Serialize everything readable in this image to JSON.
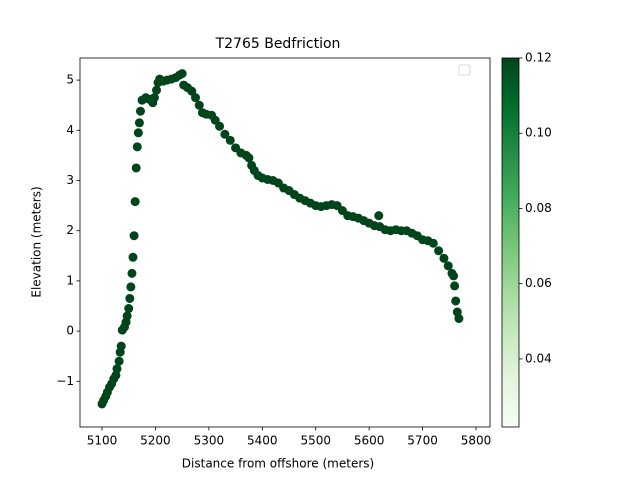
{
  "chart_data": {
    "type": "scatter",
    "title": "T2765 Bedfriction",
    "xlabel": "Distance from offshore (meters)",
    "ylabel": "Elevation (meters)",
    "xlim": [
      5058.8,
      5826.2
    ],
    "ylim": [
      -1.91,
      5.44
    ],
    "xticks": [
      5100,
      5200,
      5300,
      5400,
      5500,
      5600,
      5700,
      5800
    ],
    "yticks": [
      {
        "value": -1,
        "label": "−1"
      },
      0,
      1,
      2,
      3,
      4,
      5
    ],
    "color": "#00441b",
    "legend": "upper right",
    "colorbar": {
      "clim": [
        0.0219,
        0.12
      ],
      "cticks": [
        0.04,
        0.06,
        0.08,
        0.1,
        0.12
      ],
      "ctick_labels": [
        "0.04",
        "0.06",
        "0.08",
        "0.10",
        "0.12"
      ],
      "colormap": [
        "#f7fcf5",
        "#e5f5e0",
        "#c7e9c0",
        "#a1d99b",
        "#74c476",
        "#41ab5d",
        "#238b45",
        "#006d2c",
        "#00441b"
      ]
    },
    "x": [
      5100,
      5103,
      5107,
      5110,
      5114,
      5118,
      5122,
      5126,
      5128,
      5132,
      5134,
      5136,
      5138,
      5142,
      5145,
      5147,
      5150,
      5152,
      5154,
      5156,
      5158,
      5160,
      5162,
      5164,
      5166,
      5168,
      5170,
      5172,
      5175,
      5182,
      5188,
      5195,
      5198,
      5202,
      5205,
      5208,
      5215,
      5222,
      5230,
      5238,
      5245,
      5250,
      5253,
      5260,
      5268,
      5275,
      5282,
      5288,
      5295,
      5305,
      5312,
      5320,
      5330,
      5340,
      5350,
      5360,
      5370,
      5375,
      5380,
      5385,
      5392,
      5400,
      5410,
      5420,
      5430,
      5440,
      5450,
      5460,
      5470,
      5480,
      5490,
      5500,
      5510,
      5520,
      5530,
      5540,
      5550,
      5560,
      5570,
      5580,
      5590,
      5600,
      5610,
      5618,
      5620,
      5630,
      5640,
      5650,
      5660,
      5670,
      5680,
      5690,
      5700,
      5710,
      5720,
      5730,
      5740,
      5748,
      5755,
      5758,
      5760,
      5762,
      5765,
      5768
    ],
    "y": [
      -1.45,
      -1.38,
      -1.3,
      -1.22,
      -1.12,
      -1.05,
      -0.95,
      -0.88,
      -0.75,
      -0.6,
      -0.42,
      -0.3,
      0.02,
      0.08,
      0.18,
      0.3,
      0.45,
      0.65,
      0.88,
      1.15,
      1.47,
      1.9,
      2.58,
      3.25,
      3.67,
      3.95,
      4.15,
      4.38,
      4.6,
      4.65,
      4.62,
      4.55,
      4.65,
      4.8,
      4.95,
      5.02,
      4.98,
      5.0,
      5.02,
      5.05,
      5.1,
      5.13,
      4.9,
      4.85,
      4.78,
      4.65,
      4.5,
      4.35,
      4.32,
      4.3,
      4.2,
      4.08,
      3.92,
      3.8,
      3.65,
      3.55,
      3.5,
      3.45,
      3.3,
      3.2,
      3.1,
      3.05,
      3.02,
      3.0,
      2.95,
      2.85,
      2.8,
      2.72,
      2.65,
      2.6,
      2.55,
      2.5,
      2.48,
      2.5,
      2.52,
      2.5,
      2.4,
      2.3,
      2.28,
      2.25,
      2.2,
      2.15,
      2.1,
      2.3,
      2.08,
      2.02,
      2.0,
      2.02,
      2.0,
      2.0,
      1.95,
      1.9,
      1.82,
      1.8,
      1.75,
      1.6,
      1.45,
      1.3,
      1.15,
      1.1,
      0.9,
      0.6,
      0.38,
      0.25
    ]
  }
}
